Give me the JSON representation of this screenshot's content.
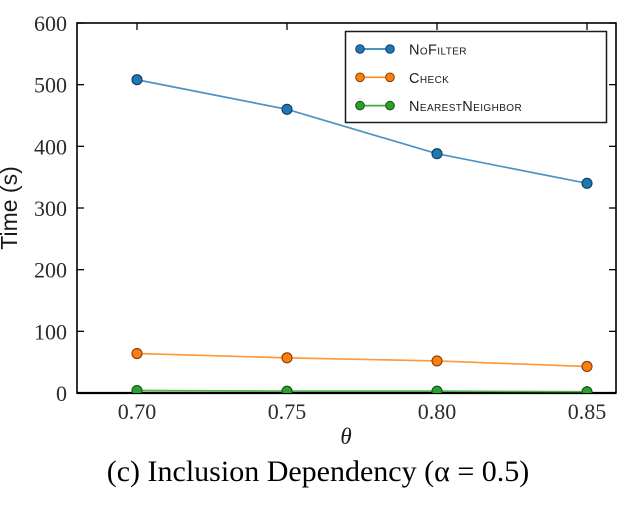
{
  "chart_data": {
    "type": "line",
    "title": "",
    "xlabel": "θ",
    "ylabel": "Time (s)",
    "x": [
      0.7,
      0.75,
      0.8,
      0.85
    ],
    "x_tick_labels": [
      "0.70",
      "0.75",
      "0.80",
      "0.85"
    ],
    "y_ticks": [
      0,
      100,
      200,
      300,
      400,
      500,
      600
    ],
    "ylim": [
      0,
      600
    ],
    "grid": false,
    "tick_direction": "in",
    "legend": {
      "position": "upper-right",
      "border": true,
      "background": "#ffffff"
    },
    "series": [
      {
        "name": "NoFilter",
        "color": "#1f77b4",
        "marker_edge": "#0e3f63",
        "values": [
          508,
          460,
          388,
          340
        ]
      },
      {
        "name": "Check",
        "color": "#ff7f0e",
        "marker_edge": "#803f03",
        "values": [
          64,
          57,
          52,
          43
        ]
      },
      {
        "name": "NearestNeighbor",
        "color": "#2ca02c",
        "marker_edge": "#145214",
        "values": [
          4,
          3,
          3,
          2
        ]
      }
    ],
    "caption": "(c) Inclusion Dependency (α = 0.5)"
  },
  "colors": {
    "axis": "#000000",
    "tick_label": "#2b2b2b",
    "legend_border": "#1a1a1a"
  }
}
